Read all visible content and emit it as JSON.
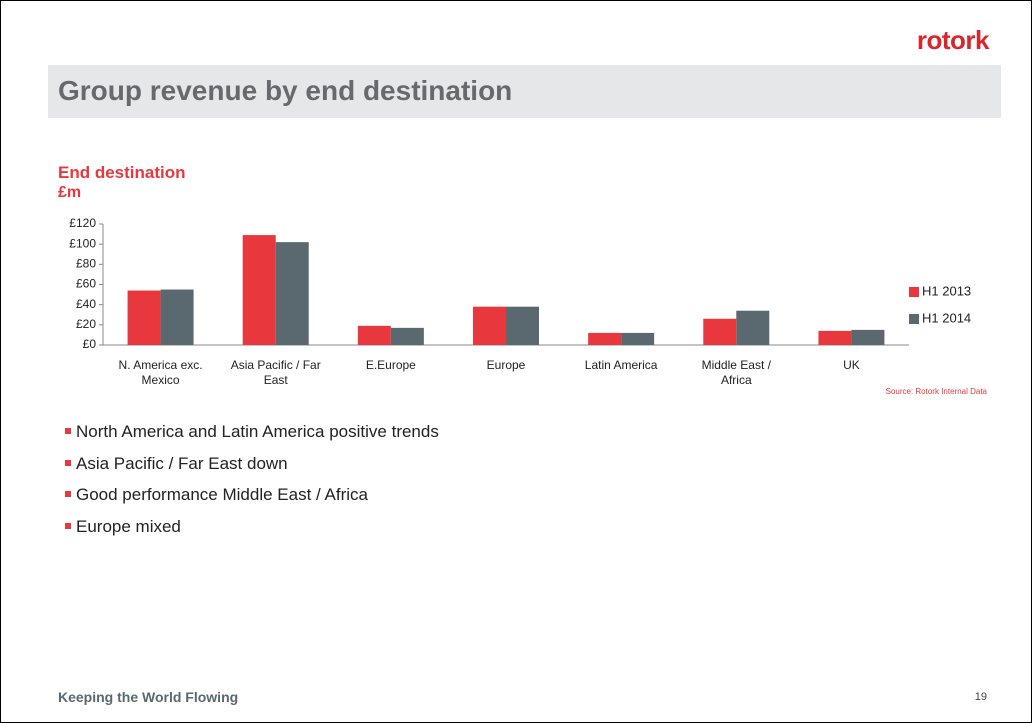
{
  "logo": "rotork",
  "title": "Group revenue by end destination",
  "chart_data": {
    "type": "bar",
    "title": "End destination",
    "y_label": "£m",
    "categories": [
      "N. America exc. Mexico",
      "Asia Pacific / Far East",
      "E.Europe",
      "Europe",
      "Latin America",
      "Middle East / Africa",
      "UK"
    ],
    "series": [
      {
        "name": "H1 2013",
        "color": "#e8383d",
        "values": [
          54,
          109,
          19,
          38,
          12,
          26,
          14
        ]
      },
      {
        "name": "H1 2014",
        "color": "#5a6870",
        "values": [
          55,
          102,
          17,
          38,
          12,
          34,
          15
        ]
      }
    ],
    "ylim": [
      0,
      120
    ],
    "yticks": [
      {
        "value": 0,
        "label": "£0"
      },
      {
        "value": 20,
        "label": "£20"
      },
      {
        "value": 40,
        "label": "£40"
      },
      {
        "value": 60,
        "label": "£60"
      },
      {
        "value": 80,
        "label": "£80"
      },
      {
        "value": 100,
        "label": "£100"
      },
      {
        "value": 120,
        "label": "£120"
      }
    ],
    "legend": "right",
    "source": "Source: Rotork Internal Data"
  },
  "bullets": [
    "North America and Latin America positive trends",
    "Asia Pacific / Far East down",
    "Good performance Middle East / Africa",
    "Europe mixed"
  ],
  "footer": "Keeping the World Flowing",
  "page_number": "19"
}
